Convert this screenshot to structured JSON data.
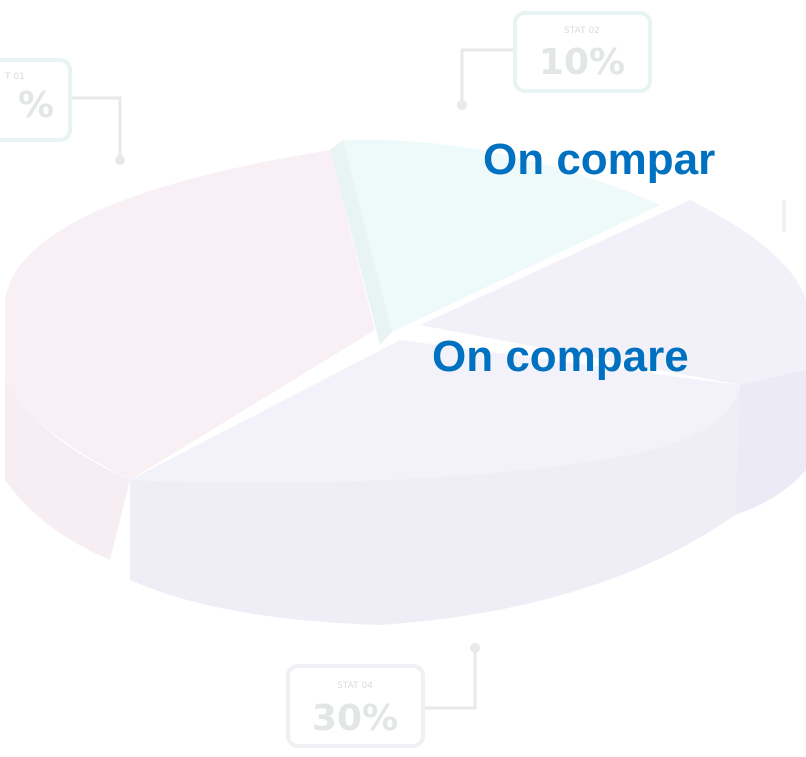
{
  "callouts": [
    {
      "label": "T 01",
      "value": "%"
    },
    {
      "label": "STAT 02",
      "value": "10%"
    },
    {
      "label": "STAT 04",
      "value": "30%"
    }
  ],
  "headings": [
    "On compar",
    "On compare"
  ]
}
